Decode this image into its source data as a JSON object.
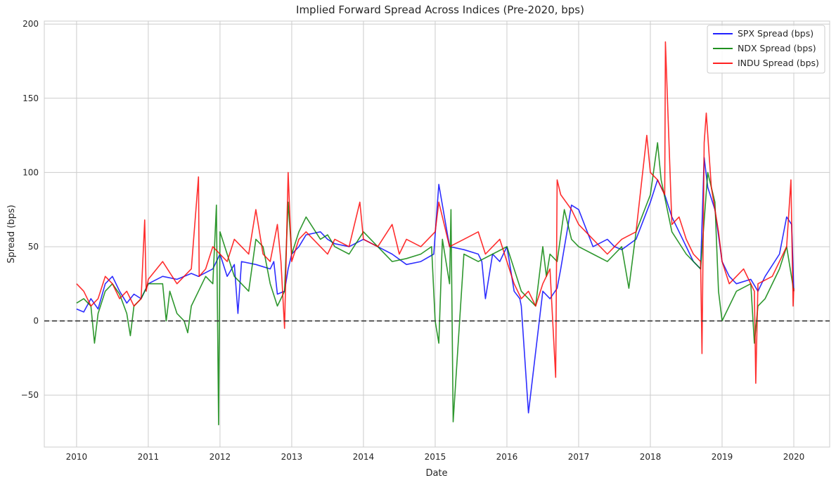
{
  "chart_data": {
    "type": "line",
    "title": "Implied Forward Spread Across Indices (Pre-2020, bps)",
    "xlabel": "Date",
    "ylabel": "Spread (bps)",
    "xlim": [
      2009.55,
      2020.5
    ],
    "ylim": [
      -85,
      202
    ],
    "xticks": [
      2010,
      2011,
      2012,
      2013,
      2014,
      2015,
      2016,
      2017,
      2018,
      2019,
      2020
    ],
    "xtick_labels": [
      "2010",
      "2011",
      "2012",
      "2013",
      "2014",
      "2015",
      "2016",
      "2017",
      "2018",
      "2019",
      "2020"
    ],
    "yticks": [
      -50,
      0,
      50,
      100,
      150,
      200
    ],
    "ytick_labels": [
      "−50",
      "0",
      "50",
      "100",
      "150",
      "200"
    ],
    "grid": true,
    "legend_position": "top-right",
    "reference_line": {
      "y": 0,
      "style": "dashed",
      "color": "#333333"
    },
    "series": [
      {
        "name": "SPX Spread (bps)",
        "color": "#0000ff",
        "x": [
          2010.0,
          2010.1,
          2010.2,
          2010.3,
          2010.4,
          2010.5,
          2010.6,
          2010.7,
          2010.8,
          2010.9,
          2011.0,
          2011.2,
          2011.4,
          2011.6,
          2011.7,
          2011.9,
          2012.0,
          2012.1,
          2012.2,
          2012.25,
          2012.3,
          2012.5,
          2012.7,
          2012.75,
          2012.8,
          2012.9,
          2012.95,
          2013.0,
          2013.1,
          2013.2,
          2013.4,
          2013.5,
          2013.6,
          2013.8,
          2014.0,
          2014.2,
          2014.4,
          2014.6,
          2014.8,
          2014.98,
          2015.05,
          2015.2,
          2015.4,
          2015.6,
          2015.65,
          2015.7,
          2015.8,
          2015.9,
          2016.0,
          2016.1,
          2016.18,
          2016.2,
          2016.3,
          2016.5,
          2016.6,
          2016.7,
          2016.75,
          2016.9,
          2017.0,
          2017.2,
          2017.4,
          2017.5,
          2017.6,
          2017.8,
          2018.0,
          2018.1,
          2018.2,
          2018.3,
          2018.5,
          2018.6,
          2018.7,
          2018.75,
          2018.8,
          2018.9,
          2019.0,
          2019.1,
          2019.2,
          2019.4,
          2019.5,
          2019.6,
          2019.8,
          2019.9,
          2019.97,
          2020.0
        ],
        "values": [
          8,
          6,
          15,
          8,
          25,
          30,
          20,
          12,
          18,
          15,
          25,
          30,
          28,
          32,
          30,
          35,
          45,
          30,
          38,
          5,
          40,
          38,
          35,
          40,
          18,
          20,
          35,
          45,
          50,
          58,
          60,
          55,
          52,
          50,
          55,
          50,
          45,
          38,
          40,
          45,
          92,
          50,
          48,
          45,
          40,
          15,
          45,
          40,
          50,
          20,
          15,
          10,
          -62,
          20,
          15,
          22,
          35,
          78,
          75,
          50,
          55,
          50,
          48,
          55,
          80,
          95,
          85,
          70,
          50,
          40,
          35,
          110,
          90,
          75,
          40,
          30,
          25,
          28,
          20,
          30,
          45,
          70,
          65,
          20
        ]
      },
      {
        "name": "NDX Spread (bps)",
        "color": "#008000",
        "x": [
          2010.0,
          2010.1,
          2010.2,
          2010.25,
          2010.3,
          2010.4,
          2010.5,
          2010.6,
          2010.7,
          2010.75,
          2010.8,
          2010.9,
          2011.0,
          2011.2,
          2011.25,
          2011.3,
          2011.4,
          2011.5,
          2011.55,
          2011.6,
          2011.7,
          2011.8,
          2011.9,
          2011.95,
          2011.98,
          2012.0,
          2012.1,
          2012.2,
          2012.4,
          2012.5,
          2012.6,
          2012.7,
          2012.8,
          2012.9,
          2012.95,
          2013.0,
          2013.1,
          2013.2,
          2013.4,
          2013.5,
          2013.6,
          2013.8,
          2014.0,
          2014.2,
          2014.4,
          2014.6,
          2014.8,
          2014.95,
          2015.0,
          2015.05,
          2015.1,
          2015.2,
          2015.22,
          2015.25,
          2015.4,
          2015.6,
          2015.8,
          2016.0,
          2016.1,
          2016.2,
          2016.3,
          2016.4,
          2016.5,
          2016.55,
          2016.6,
          2016.7,
          2016.8,
          2016.9,
          2017.0,
          2017.2,
          2017.4,
          2017.5,
          2017.6,
          2017.7,
          2017.8,
          2018.0,
          2018.1,
          2018.15,
          2018.3,
          2018.5,
          2018.7,
          2018.8,
          2018.9,
          2018.95,
          2019.0,
          2019.1,
          2019.2,
          2019.4,
          2019.45,
          2019.5,
          2019.6,
          2019.8,
          2019.9,
          2020.0
        ],
        "values": [
          12,
          15,
          10,
          -15,
          5,
          20,
          25,
          18,
          5,
          -10,
          10,
          15,
          25,
          25,
          0,
          20,
          5,
          0,
          -8,
          10,
          20,
          30,
          25,
          78,
          -70,
          60,
          45,
          30,
          20,
          55,
          50,
          25,
          10,
          20,
          80,
          45,
          60,
          70,
          55,
          58,
          50,
          45,
          60,
          50,
          40,
          42,
          45,
          50,
          0,
          -15,
          55,
          25,
          75,
          -68,
          45,
          40,
          45,
          50,
          35,
          20,
          15,
          10,
          50,
          30,
          45,
          40,
          75,
          55,
          50,
          45,
          40,
          45,
          50,
          22,
          60,
          85,
          120,
          95,
          60,
          45,
          35,
          100,
          80,
          20,
          0,
          10,
          20,
          25,
          -15,
          10,
          15,
          35,
          50,
          20
        ]
      },
      {
        "name": "INDU Spread (bps)",
        "color": "#ff0000",
        "x": [
          2010.0,
          2010.1,
          2010.2,
          2010.3,
          2010.4,
          2010.5,
          2010.6,
          2010.7,
          2010.8,
          2010.9,
          2010.95,
          2010.97,
          2011.0,
          2011.2,
          2011.4,
          2011.6,
          2011.7,
          2011.71,
          2011.8,
          2011.9,
          2012.0,
          2012.1,
          2012.2,
          2012.3,
          2012.4,
          2012.5,
          2012.6,
          2012.7,
          2012.8,
          2012.85,
          2012.9,
          2012.95,
          2013.0,
          2013.1,
          2013.2,
          2013.4,
          2013.5,
          2013.6,
          2013.8,
          2013.95,
          2014.0,
          2014.2,
          2014.4,
          2014.5,
          2014.6,
          2014.8,
          2015.0,
          2015.05,
          2015.2,
          2015.4,
          2015.6,
          2015.7,
          2015.8,
          2015.9,
          2016.0,
          2016.1,
          2016.2,
          2016.3,
          2016.4,
          2016.5,
          2016.6,
          2016.68,
          2016.7,
          2016.75,
          2016.9,
          2017.0,
          2017.2,
          2017.4,
          2017.5,
          2017.6,
          2017.8,
          2017.95,
          2018.0,
          2018.1,
          2018.2,
          2018.21,
          2018.3,
          2018.4,
          2018.5,
          2018.6,
          2018.7,
          2018.72,
          2018.75,
          2018.78,
          2018.85,
          2018.95,
          2019.0,
          2019.1,
          2019.3,
          2019.45,
          2019.47,
          2019.5,
          2019.7,
          2019.9,
          2019.96,
          2019.99,
          2020.0
        ],
        "values": [
          25,
          20,
          10,
          15,
          30,
          25,
          15,
          20,
          10,
          15,
          68,
          20,
          28,
          40,
          25,
          35,
          97,
          30,
          35,
          50,
          45,
          40,
          55,
          50,
          45,
          75,
          45,
          40,
          65,
          40,
          -5,
          100,
          40,
          55,
          60,
          50,
          45,
          55,
          50,
          80,
          55,
          50,
          65,
          45,
          55,
          50,
          60,
          80,
          50,
          55,
          60,
          45,
          50,
          55,
          40,
          25,
          15,
          20,
          10,
          25,
          35,
          -38,
          95,
          85,
          75,
          65,
          55,
          45,
          50,
          55,
          60,
          125,
          100,
          95,
          85,
          188,
          65,
          70,
          55,
          45,
          40,
          -22,
          120,
          140,
          90,
          60,
          40,
          25,
          35,
          20,
          -42,
          25,
          30,
          50,
          95,
          10,
          22
        ]
      }
    ]
  }
}
